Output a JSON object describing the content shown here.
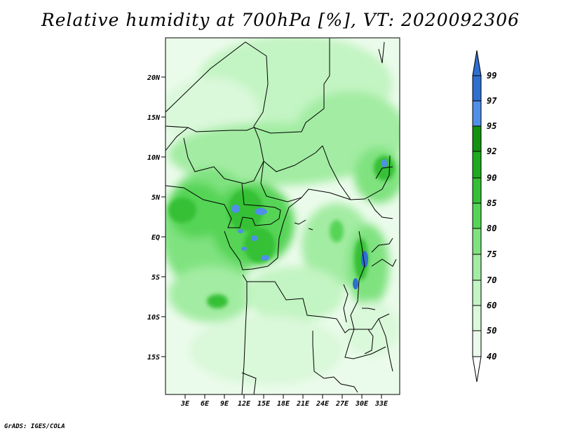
{
  "title": "Relative humidity at 700hPa [%], VT: 2020092306",
  "credit": "GrADS: IGES/COLA",
  "map": {
    "lat_ticks": [
      "20N",
      "15N",
      "10N",
      "5N",
      "EQ",
      "5S",
      "10S",
      "15S"
    ],
    "lon_ticks": [
      "3E",
      "6E",
      "9E",
      "12E",
      "15E",
      "18E",
      "21E",
      "24E",
      "27E",
      "30E",
      "33E"
    ]
  },
  "colorbar": {
    "labels": [
      "99",
      "97",
      "95",
      "92",
      "90",
      "85",
      "80",
      "75",
      "70",
      "60",
      "50",
      "40"
    ],
    "colors": {
      "above_99": "#2f6fd0",
      "97_99": "#2f6fd0",
      "95_97": "#4f8fe8",
      "92_95": "#119211",
      "90_92": "#1eaa1e",
      "85_90": "#34c034",
      "80_85": "#56d456",
      "75_80": "#7fe27f",
      "70_75": "#a3eca3",
      "60_70": "#c3f4c3",
      "50_60": "#daf8da",
      "40_50": "#ebfbeb",
      "below_40": "#ffffff"
    }
  }
}
